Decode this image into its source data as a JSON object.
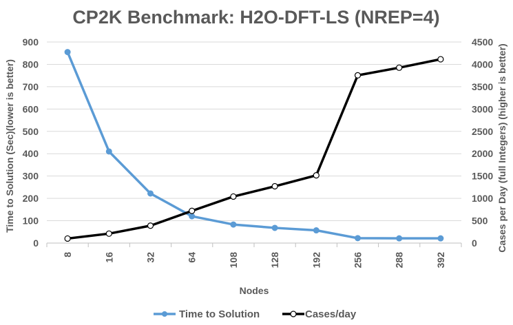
{
  "chart_data": {
    "type": "line",
    "title": "CP2K Benchmark: H2O-DFT-LS (NREP=4)",
    "xlabel": "Nodes",
    "ylabel_left": "Time to Solution (Sec)(lower is better)",
    "ylabel_right": "Cases per Day (full Integers) (higher is better)",
    "categories": [
      "8",
      "16",
      "32",
      "64",
      "108",
      "128",
      "192",
      "256",
      "288",
      "392"
    ],
    "yleft_lim": [
      0,
      900
    ],
    "yleft_ticks": [
      0,
      100,
      200,
      300,
      400,
      500,
      600,
      700,
      800,
      900
    ],
    "yright_lim": [
      0,
      4500
    ],
    "yright_ticks": [
      0,
      500,
      1000,
      1500,
      2000,
      2500,
      3000,
      3500,
      4000,
      4500
    ],
    "grid": true,
    "legend_position": "bottom",
    "series": [
      {
        "name": "Time to Solution",
        "axis": "left",
        "color": "#5b9bd5",
        "values": [
          855,
          410,
          222,
          120,
          83,
          68,
          57,
          22,
          21,
          21
        ]
      },
      {
        "name": "Cases/day",
        "axis": "right",
        "color": "#000000",
        "values": [
          101,
          211,
          389,
          720,
          1041,
          1271,
          1516,
          3754,
          3925,
          4114
        ]
      }
    ]
  }
}
